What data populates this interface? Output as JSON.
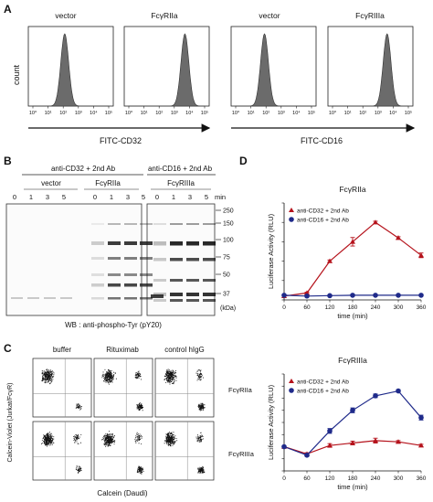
{
  "panelA": {
    "letter": "A",
    "ylabel": "count",
    "histograms": [
      {
        "title": "vector",
        "peak_log": 2.1
      },
      {
        "title": "FcγRIIa",
        "peak_log": 3.7
      },
      {
        "title": "vector",
        "peak_log": 1.9
      },
      {
        "title": "FcγRIIIa",
        "peak_log": 3.6
      }
    ],
    "ticks": [
      "10⁰",
      "10¹",
      "10²",
      "10³",
      "10⁴",
      "10⁵"
    ],
    "arrow_labels": [
      "FITC-CD32",
      "FITC-CD16"
    ]
  },
  "panelB": {
    "letter": "B",
    "group_labels": [
      "anti-CD32 + 2nd Ab",
      "anti-CD16 + 2nd Ab"
    ],
    "lane_groups": [
      "vector",
      "FcγRIIa",
      "FcγRIIIa"
    ],
    "lanes": [
      "0",
      "1",
      "3",
      "5",
      "0",
      "1",
      "3",
      "5",
      "0",
      "1",
      "3",
      "5"
    ],
    "time_unit": "min",
    "mw_markers": [
      "250",
      "150",
      "100",
      "75",
      "50",
      "37"
    ],
    "mw_unit": "(kDa)",
    "wb_label": "WB : anti-phospho-Tyr (pY20)"
  },
  "panelC": {
    "letter": "C",
    "columns": [
      "buffer",
      "Rituximab",
      "control hIgG"
    ],
    "rows": [
      "FcγRIIa",
      "FcγRIIIa"
    ],
    "xlabel": "Calcein (Daudi)",
    "ylabel": "Calcein-Violet (Jurkat/FcγR)"
  },
  "panelD": {
    "letter": "D",
    "colors": {
      "red": "#b5121b",
      "blue": "#1f2a8a"
    },
    "ylabel": "Luciferase Activity (RLU)"
  },
  "chart_data": [
    {
      "type": "line",
      "title": "FcγRIIa",
      "xlabel": "time (min)",
      "ylabel": "Luciferase Activity (RLU)",
      "x": [
        0,
        60,
        120,
        180,
        240,
        300,
        360
      ],
      "xticks": [
        "0",
        "60",
        "120",
        "180",
        "240",
        "300",
        "360"
      ],
      "yticks": [
        "0",
        "500",
        "1000",
        "1500",
        "2000",
        "2500"
      ],
      "xlim": [
        0,
        360
      ],
      "ylim": [
        0,
        2500
      ],
      "series": [
        {
          "name": "anti-CD32 + 2nd Ab",
          "color": "#b5121b",
          "marker": "triangle",
          "values": [
            100,
            180,
            1000,
            1500,
            2000,
            1600,
            1150
          ],
          "errors": [
            0,
            20,
            30,
            110,
            30,
            30,
            60
          ]
        },
        {
          "name": "anti-CD16 + 2nd Ab",
          "color": "#1f2a8a",
          "marker": "circle",
          "values": [
            120,
            100,
            110,
            120,
            120,
            120,
            120
          ],
          "errors": [
            0,
            0,
            0,
            0,
            0,
            0,
            0
          ]
        }
      ],
      "legend": "top-left"
    },
    {
      "type": "line",
      "title": "FcγRIIIa",
      "xlabel": "time (min)",
      "ylabel": "Luciferase Activity (RLU)",
      "x": [
        0,
        60,
        120,
        180,
        240,
        300,
        360
      ],
      "xticks": [
        "0",
        "60",
        "120",
        "180",
        "240",
        "300",
        "360"
      ],
      "yticks": [
        "0",
        "100",
        "200",
        "300",
        "400",
        "500",
        "600",
        "700",
        "800"
      ],
      "xlim": [
        0,
        360
      ],
      "ylim": [
        0,
        800
      ],
      "series": [
        {
          "name": "anti-CD32 + 2nd Ab",
          "color": "#b5121b",
          "marker": "triangle",
          "values": [
            200,
            140,
            210,
            230,
            250,
            240,
            210
          ],
          "errors": [
            0,
            10,
            15,
            15,
            20,
            10,
            10
          ]
        },
        {
          "name": "anti-CD16 + 2nd Ab",
          "color": "#1f2a8a",
          "marker": "circle",
          "values": [
            200,
            130,
            330,
            500,
            620,
            660,
            440
          ],
          "errors": [
            0,
            10,
            20,
            20,
            15,
            10,
            20
          ]
        }
      ],
      "legend": "top-left"
    }
  ]
}
